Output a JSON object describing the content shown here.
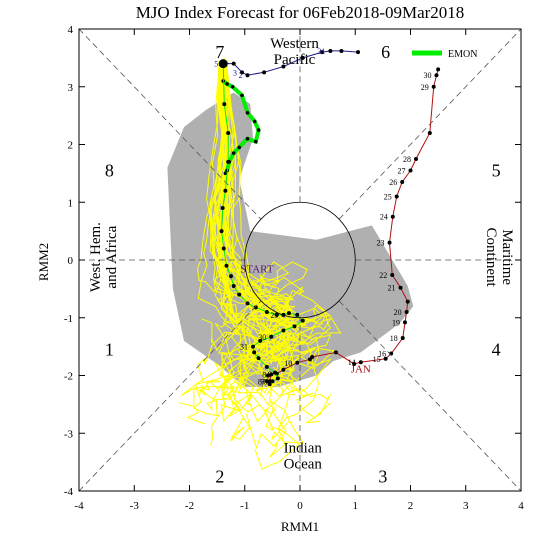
{
  "chart_data": {
    "type": "line",
    "title": "MJO Index Forecast for 06Feb2018-09Mar2018",
    "xlabel": "RMM1",
    "ylabel": "RMM2",
    "xlim": [
      -4,
      4
    ],
    "ylim": [
      -4,
      4
    ],
    "xticks": [
      -4,
      -3,
      -2,
      -1,
      0,
      1,
      2,
      3,
      4
    ],
    "yticks": [
      -4,
      -3,
      -2,
      -1,
      0,
      1,
      2,
      3,
      4
    ],
    "grid": false,
    "legend": {
      "position": "top-right",
      "entries": [
        {
          "name": "EMON",
          "color": "#00ee00"
        }
      ]
    },
    "phase_labels": [
      {
        "text": "1",
        "x": -3.45,
        "y": -1.55
      },
      {
        "text": "2",
        "x": -1.45,
        "y": -3.75
      },
      {
        "text": "3",
        "x": 1.5,
        "y": -3.75
      },
      {
        "text": "4",
        "x": 3.55,
        "y": -1.55
      },
      {
        "text": "5",
        "x": 3.55,
        "y": 1.55
      },
      {
        "text": "6",
        "x": 1.55,
        "y": 3.6
      },
      {
        "text": "7",
        "x": -1.45,
        "y": 3.6
      },
      {
        "text": "8",
        "x": -3.45,
        "y": 1.55
      }
    ],
    "region_labels": [
      {
        "lines": [
          "Western",
          "Pacific"
        ],
        "x": -0.1,
        "y": 3.6,
        "rotate": 0
      },
      {
        "lines": [
          "Indian",
          "Ocean"
        ],
        "x": 0.05,
        "y": -3.4,
        "rotate": 0
      },
      {
        "lines": [
          "West. Hem.",
          "and Africa"
        ],
        "x": -3.55,
        "y": 0.05,
        "rotate": -90
      },
      {
        "lines": [
          "Maritime",
          "Continent"
        ],
        "x": 3.6,
        "y": 0.05,
        "rotate": 90
      }
    ],
    "annotations": [
      {
        "text": "START",
        "x": -0.78,
        "y": -0.22,
        "color": "#5a1a6e"
      },
      {
        "text": "JAN",
        "x": 1.1,
        "y": -1.95,
        "color": "#b01010"
      }
    ],
    "series": [
      {
        "name": "",
        "role": "observed-jan",
        "color": "#b01010",
        "x": [
          -0.55,
          -0.52,
          -0.42,
          -0.3,
          -0.05,
          0.18,
          0.22,
          0.65,
          0.98,
          1.1,
          1.55,
          1.65,
          1.86,
          1.9,
          1.93,
          1.95,
          1.82,
          1.67,
          1.62,
          1.68,
          1.75,
          1.85,
          2.0,
          2.1,
          2.35,
          2.42,
          2.47,
          2.5
        ],
        "y": [
          -2.1,
          -1.98,
          -1.97,
          -1.9,
          -1.78,
          -1.72,
          -1.68,
          -1.6,
          -1.8,
          -1.77,
          -1.71,
          -1.62,
          -1.35,
          -1.08,
          -0.9,
          -0.72,
          -0.48,
          -0.26,
          0.3,
          0.75,
          1.1,
          1.35,
          1.55,
          1.75,
          2.2,
          3.0,
          3.2,
          3.3
        ],
        "day_labels": [
          {
            "text": "7",
            "i": 0
          },
          {
            "text": "8",
            "i": 1
          },
          {
            "text": "9",
            "i": 2
          },
          {
            "text": "10",
            "i": 4
          },
          {
            "text": "14",
            "i": 9
          },
          {
            "text": "15",
            "i": 10
          },
          {
            "text": "16",
            "i": 11
          },
          {
            "text": "18",
            "i": 12
          },
          {
            "text": "19",
            "i": 13
          },
          {
            "text": "20",
            "i": 14
          },
          {
            "text": "21",
            "i": 16
          },
          {
            "text": "22",
            "i": 17
          },
          {
            "text": "23",
            "i": 18
          },
          {
            "text": "24",
            "i": 19
          },
          {
            "text": "25",
            "i": 20
          },
          {
            "text": "26",
            "i": 21
          },
          {
            "text": "27",
            "i": 22
          },
          {
            "text": "28",
            "i": 23
          },
          {
            "text": "29",
            "i": 25
          },
          {
            "text": "30",
            "i": 26
          }
        ]
      },
      {
        "name": "",
        "role": "observed-feb",
        "color": "#1c1c8c",
        "x": [
          -1.39,
          -1.2,
          -1.05,
          -0.95,
          -0.65,
          -0.3,
          0.05,
          0.4,
          0.55,
          0.75,
          1.05
        ],
        "y": [
          3.4,
          3.4,
          3.25,
          3.2,
          3.25,
          3.35,
          3.5,
          3.6,
          3.62,
          3.62,
          3.6
        ],
        "day_labels": [
          {
            "text": "5",
            "i": 0
          },
          {
            "text": "3",
            "i": 2
          },
          {
            "text": "2",
            "i": 3
          },
          {
            "text": "31",
            "i": 8
          }
        ]
      },
      {
        "name": "EMON",
        "role": "ensemble-mean",
        "color": "#00ee00",
        "x": [
          -1.39,
          -1.32,
          -1.22,
          -1.05,
          -0.95,
          -0.82,
          -0.75,
          -0.8,
          -0.95,
          -1.1,
          -1.2,
          -1.28,
          -1.32,
          -1.35
        ],
        "y": [
          3.1,
          3.05,
          3.0,
          2.85,
          2.55,
          2.4,
          2.25,
          2.05,
          2.1,
          1.95,
          1.85,
          1.7,
          1.55,
          1.5
        ]
      },
      {
        "name": "",
        "role": "forecast-track",
        "color": "#00ee00",
        "x": [
          -1.39,
          -1.37,
          -1.3,
          -1.3,
          -1.35,
          -1.4,
          -1.42,
          -1.38,
          -1.33,
          -1.25,
          -1.2,
          -1.1,
          -0.95,
          -0.8,
          -0.6,
          -0.42,
          -0.3,
          -0.2,
          -0.05,
          0.05,
          -0.1,
          -0.3,
          -0.52,
          -0.72,
          -0.85,
          -0.83,
          -0.75,
          -0.6,
          -0.45,
          -0.4,
          -0.5,
          -0.55,
          -0.6,
          -0.58
        ],
        "y": [
          3.4,
          2.7,
          2.2,
          1.7,
          1.2,
          0.9,
          0.5,
          0.2,
          -0.1,
          -0.28,
          -0.45,
          -0.6,
          -0.75,
          -0.82,
          -0.9,
          -0.95,
          -0.95,
          -0.92,
          -0.95,
          -1.05,
          -1.15,
          -1.22,
          -1.33,
          -1.4,
          -1.5,
          -1.6,
          -1.7,
          -1.85,
          -1.95,
          -2.05,
          -2.1,
          -2.15,
          -2.1,
          -2.0
        ],
        "day_labels": [
          {
            "text": "29",
            "i": 16
          },
          {
            "text": "30",
            "i": 22
          },
          {
            "text": "31",
            "i": 24
          },
          {
            "text": "6",
            "i": 30
          },
          {
            "text": "7",
            "i": 31
          },
          {
            "text": "8",
            "i": 32
          }
        ]
      }
    ],
    "ensemble_color": "#ffff00",
    "spread_color": "#b0b0b0",
    "circle_radius": 1
  }
}
